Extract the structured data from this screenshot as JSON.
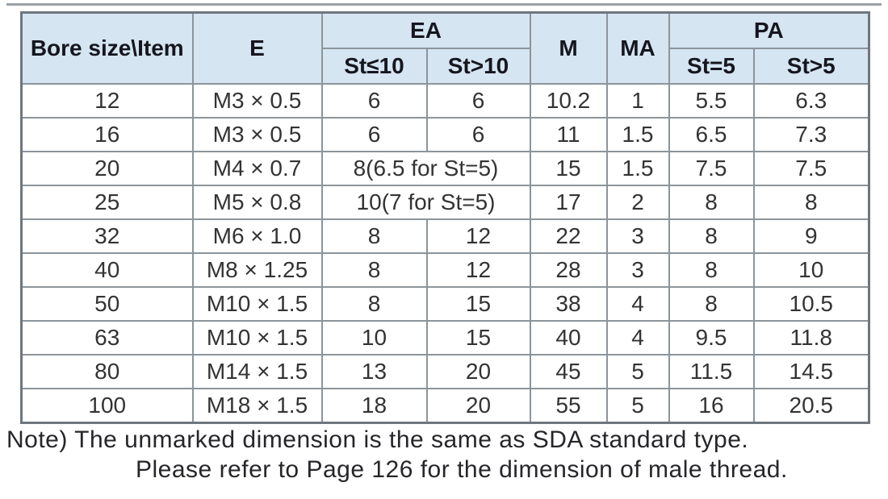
{
  "colors": {
    "header_bg": "#d5e5f1",
    "grid_border": "#8c949b",
    "outer_border": "#6f767d",
    "header_text": "#16161e",
    "data_text": "#333333",
    "note_text": "#26262a",
    "top_rule": "#9aa0a6"
  },
  "table": {
    "header": {
      "bore_item": "Bore size\\Item",
      "e": "E",
      "ea": "EA",
      "ea_sub": [
        "St≤10",
        "St>10"
      ],
      "m": "M",
      "ma": "MA",
      "pa": "PA",
      "pa_sub": [
        "St=5",
        "St>5"
      ]
    },
    "rows": [
      {
        "bore": "12",
        "e": "M3 × 0.5",
        "ea": [
          "6",
          "6"
        ],
        "m": "10.2",
        "ma": "1",
        "pa": [
          "5.5",
          "6.3"
        ]
      },
      {
        "bore": "16",
        "e": "M3 × 0.5",
        "ea": [
          "6",
          "6"
        ],
        "m": "11",
        "ma": "1.5",
        "pa": [
          "6.5",
          "7.3"
        ]
      },
      {
        "bore": "20",
        "e": "M4 × 0.7",
        "ea_merged": "8(6.5 for St=5)",
        "m": "15",
        "ma": "1.5",
        "pa": [
          "7.5",
          "7.5"
        ]
      },
      {
        "bore": "25",
        "e": "M5 × 0.8",
        "ea_merged": "10(7 for St=5)",
        "m": "17",
        "ma": "2",
        "pa": [
          "8",
          "8"
        ]
      },
      {
        "bore": "32",
        "e": "M6 × 1.0",
        "ea": [
          "8",
          "12"
        ],
        "m": "22",
        "ma": "3",
        "pa": [
          "8",
          "9"
        ]
      },
      {
        "bore": "40",
        "e": "M8 × 1.25",
        "ea": [
          "8",
          "12"
        ],
        "m": "28",
        "ma": "3",
        "pa": [
          "8",
          "10"
        ]
      },
      {
        "bore": "50",
        "e": "M10 × 1.5",
        "ea": [
          "8",
          "15"
        ],
        "m": "38",
        "ma": "4",
        "pa": [
          "8",
          "10.5"
        ]
      },
      {
        "bore": "63",
        "e": "M10 × 1.5",
        "ea": [
          "10",
          "15"
        ],
        "m": "40",
        "ma": "4",
        "pa": [
          "9.5",
          "11.8"
        ]
      },
      {
        "bore": "80",
        "e": "M14 × 1.5",
        "ea": [
          "13",
          "20"
        ],
        "m": "45",
        "ma": "5",
        "pa": [
          "11.5",
          "14.5"
        ]
      },
      {
        "bore": "100",
        "e": "M18 × 1.5",
        "ea": [
          "18",
          "20"
        ],
        "m": "55",
        "ma": "5",
        "pa": [
          "16",
          "20.5"
        ]
      }
    ]
  },
  "note": {
    "line1": "Note) The unmarked dimension is the same as SDA standard type.",
    "line2": "Please refer to Page 126 for the dimension of male thread."
  }
}
